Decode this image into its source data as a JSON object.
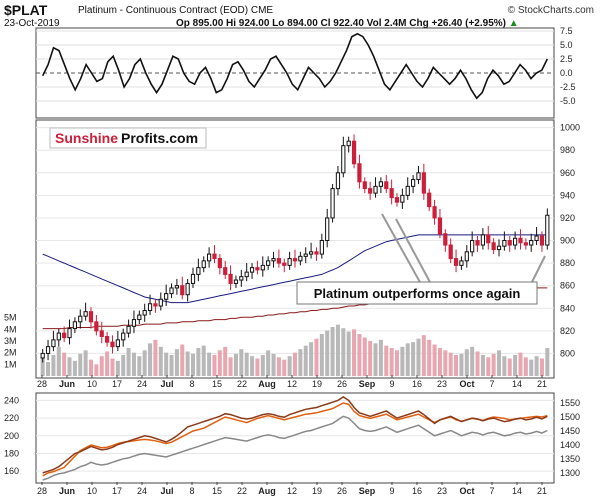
{
  "header": {
    "symbol": "$PLAT",
    "description": "Platinum - Continuous Contract (EOD)",
    "exchange": "CME",
    "date": "23-Oct-2019",
    "quote": "Op 895.00  Hi 924.00  Lo 894.00  Cl 922.40  Vol 2.4M  Chg +26.40 (+2.95%)",
    "quote_arrow": "▲",
    "copyright": "© StockCharts.com"
  },
  "watermark": {
    "part1": "Sunshine",
    "part2": "Profits.com"
  },
  "annotation": "Platinum outperforms once again",
  "colors": {
    "up": "#111111",
    "down": "#cc1f3a",
    "ma_short": "#1a1a80",
    "ma_long": "#8b1a1a",
    "vol_up": "#b8b8b8",
    "vol_down": "#e8a7b0",
    "gold": "#e06010",
    "silver": "#888888",
    "platinum_line": "#8b3a1a"
  },
  "chart_data": [
    {
      "type": "line",
      "panel": "oscillator",
      "ylim": [
        -7.5,
        7.5
      ],
      "yticks": [
        7.5,
        5.0,
        2.5,
        0.0,
        -2.5,
        -5.0
      ],
      "ytick_labels": [
        "7.5",
        "5.0",
        "2.5",
        "0.0",
        "-2.5",
        "-5.0"
      ],
      "values": [
        -0.5,
        1.5,
        4.5,
        4,
        1.5,
        -1,
        -3,
        -1,
        1.5,
        0,
        -1.5,
        -1,
        2,
        3,
        0.5,
        -2.5,
        -1,
        1.5,
        2.5,
        0,
        -2,
        -3.5,
        -2,
        0.5,
        3,
        2.5,
        0,
        -1.5,
        -2,
        0,
        1,
        -1,
        -3.5,
        -3,
        -1,
        1.5,
        2,
        0.5,
        -1.5,
        -2.5,
        -1,
        0.5,
        2.5,
        3,
        1.5,
        0,
        -2,
        -3,
        -1,
        1,
        0,
        -1,
        -2.5,
        -1.5,
        0,
        2,
        4,
        6.5,
        7,
        6.5,
        5,
        3,
        0.5,
        -2,
        -3,
        -1.5,
        0,
        1.5,
        0,
        -1.5,
        -2.5,
        -1,
        1,
        0,
        -1,
        -2,
        -1,
        0.5,
        -1,
        -3,
        -4.5,
        -3.5,
        -1,
        0.5,
        -0.5,
        -2,
        -1.5,
        0,
        1.5,
        0.5,
        -1,
        0,
        0.5,
        2.5
      ]
    },
    {
      "type": "candlestick",
      "panel": "price",
      "ylim": [
        780,
        1005
      ],
      "yticks": [
        1000,
        980,
        960,
        940,
        920,
        900,
        880,
        860,
        840,
        820,
        800
      ],
      "ytick_labels": [
        "1000",
        "980",
        "960",
        "940",
        "920",
        "900",
        "880",
        "860",
        "840",
        "820",
        "800"
      ],
      "volume_ylim": [
        0,
        6
      ],
      "volume_ticks": [
        5,
        4,
        3,
        2,
        1
      ],
      "volume_tick_labels": [
        "5M",
        "4M",
        "3M",
        "2M",
        "1M"
      ],
      "closes": [
        800,
        806,
        812,
        818,
        814,
        822,
        828,
        833,
        837,
        828,
        820,
        815,
        810,
        806,
        812,
        818,
        824,
        830,
        834,
        838,
        844,
        842,
        848,
        853,
        858,
        860,
        852,
        862,
        870,
        876,
        882,
        888,
        884,
        876,
        870,
        862,
        865,
        868,
        872,
        876,
        874,
        878,
        882,
        884,
        880,
        878,
        884,
        882,
        886,
        888,
        890,
        888,
        900,
        920,
        946,
        960,
        984,
        988,
        968,
        952,
        946,
        942,
        948,
        952,
        946,
        938,
        934,
        940,
        948,
        954,
        960,
        942,
        930,
        920,
        906,
        896,
        884,
        878,
        882,
        890,
        900,
        896,
        905,
        898,
        892,
        895,
        900,
        896,
        902,
        898,
        896,
        900,
        904,
        896,
        922.4
      ],
      "ma50": [
        888,
        886,
        884,
        882,
        880,
        878,
        876,
        874,
        872,
        870,
        868,
        866,
        864,
        862,
        860,
        858,
        856,
        854,
        852,
        850,
        849,
        848,
        847,
        846,
        845,
        845,
        845,
        845,
        846,
        847,
        848,
        849,
        850,
        851,
        852,
        853,
        854,
        855,
        856,
        857,
        858,
        859,
        860,
        861,
        862,
        863,
        864,
        865,
        866,
        867,
        868,
        869,
        870,
        872,
        874,
        876,
        879,
        882,
        885,
        888,
        891,
        893,
        895,
        897,
        899,
        900,
        901,
        902,
        903,
        904,
        905,
        905,
        905,
        905,
        905,
        905,
        905,
        905,
        905,
        905,
        905,
        905,
        905,
        905,
        905,
        905,
        905,
        905,
        905,
        905,
        905,
        905,
        905,
        905,
        905
      ],
      "ma200": [
        822,
        822,
        822,
        822,
        822,
        823,
        823,
        823,
        823,
        823,
        824,
        824,
        824,
        824,
        824,
        825,
        825,
        825,
        825,
        826,
        826,
        826,
        826,
        827,
        827,
        827,
        828,
        828,
        828,
        829,
        829,
        829,
        830,
        830,
        830,
        831,
        831,
        832,
        832,
        832,
        833,
        833,
        834,
        834,
        835,
        835,
        836,
        836,
        837,
        837,
        838,
        838,
        839,
        839,
        840,
        840,
        841,
        842,
        842,
        843,
        843,
        844,
        845,
        845,
        846,
        846,
        847,
        848,
        848,
        849,
        849,
        850,
        850,
        851,
        851,
        852,
        852,
        853,
        853,
        853,
        854,
        854,
        854,
        855,
        855,
        855,
        856,
        856,
        856,
        857,
        857,
        857,
        858,
        858,
        858
      ],
      "volume": [
        1.5,
        1.2,
        1.8,
        2.5,
        2.0,
        1.6,
        1.3,
        1.9,
        2.2,
        1.4,
        1.0,
        1.7,
        2.1,
        1.5,
        1.3,
        1.8,
        2.4,
        2.0,
        1.7,
        2.2,
        2.8,
        3.1,
        2.5,
        2.0,
        1.8,
        2.3,
        2.7,
        2.1,
        1.9,
        2.4,
        2.6,
        2.0,
        1.8,
        2.2,
        2.5,
        1.6,
        1.9,
        2.3,
        2.0,
        1.7,
        1.5,
        1.8,
        2.2,
        1.9,
        1.6,
        1.4,
        1.7,
        2.0,
        2.3,
        2.6,
        2.9,
        3.2,
        3.6,
        3.9,
        4.2,
        4.4,
        4.1,
        3.8,
        4.0,
        3.6,
        3.3,
        3.0,
        2.8,
        3.1,
        2.6,
        2.4,
        2.2,
        2.5,
        2.8,
        2.9,
        3.2,
        3.5,
        3.1,
        2.7,
        2.4,
        2.2,
        2.0,
        1.8,
        1.9,
        2.3,
        2.5,
        2.1,
        1.8,
        1.6,
        1.9,
        2.2,
        1.7,
        1.5,
        1.8,
        2.0,
        1.6,
        1.4,
        1.7,
        1.5,
        2.4
      ]
    },
    {
      "type": "line",
      "panel": "comparison",
      "left_ylim": [
        150,
        245
      ],
      "left_yticks": [
        240,
        220,
        200,
        180,
        160
      ],
      "left_ytick_labels": [
        "240",
        "220",
        "200",
        "180",
        "160"
      ],
      "right_ylim": [
        1275,
        1575
      ],
      "right_yticks": [
        1550,
        1500,
        1450,
        1400,
        1350,
        1300
      ],
      "right_ytick_labels": [
        "1550",
        "1500",
        "1450",
        "1400",
        "1350",
        "1300"
      ],
      "series": [
        {
          "values": [
            1290,
            1300,
            1305,
            1312,
            1320,
            1340,
            1360,
            1380,
            1390,
            1400,
            1395,
            1390,
            1392,
            1398,
            1405,
            1410,
            1412,
            1415,
            1418,
            1420,
            1418,
            1415,
            1410,
            1405,
            1410,
            1420,
            1430,
            1440,
            1450,
            1455,
            1460,
            1470,
            1480,
            1490,
            1500,
            1495,
            1490,
            1485,
            1480,
            1488,
            1495,
            1500,
            1505,
            1500,
            1495,
            1490,
            1495,
            1500,
            1505,
            1510,
            1512,
            1515,
            1520,
            1525,
            1530,
            1540,
            1550,
            1545,
            1520,
            1505,
            1500,
            1495,
            1500,
            1505,
            1510,
            1500,
            1490,
            1495,
            1500,
            1505,
            1510,
            1500,
            1490,
            1480,
            1490,
            1495,
            1500,
            1490,
            1485,
            1490,
            1495,
            1492,
            1488,
            1495,
            1500,
            1498,
            1495,
            1490,
            1492,
            1495,
            1498,
            1500,
            1502,
            1500,
            1505
          ]
        },
        {
          "values": [
            158,
            160,
            162,
            165,
            170,
            175,
            180,
            182,
            185,
            188,
            186,
            184,
            185,
            187,
            190,
            192,
            194,
            196,
            198,
            200,
            199,
            197,
            195,
            193,
            196,
            200,
            205,
            210,
            212,
            214,
            216,
            218,
            220,
            222,
            225,
            224,
            222,
            220,
            219,
            220,
            222,
            224,
            225,
            224,
            222,
            221,
            224,
            226,
            228,
            230,
            231,
            232,
            234,
            236,
            238,
            240,
            244,
            240,
            232,
            226,
            224,
            222,
            224,
            226,
            228,
            224,
            220,
            222,
            224,
            226,
            228,
            224,
            219,
            214,
            218,
            220,
            222,
            219,
            216,
            218,
            220,
            219,
            217,
            219,
            220,
            218,
            216,
            217,
            219,
            220,
            218,
            219,
            221,
            219,
            222
          ]
        },
        {
          "values": [
            150,
            152,
            155,
            157,
            158,
            160,
            162,
            165,
            167,
            170,
            168,
            167,
            168,
            170,
            172,
            174,
            175,
            177,
            179,
            180,
            179,
            178,
            177,
            176,
            178,
            180,
            182,
            184,
            186,
            188,
            190,
            192,
            194,
            196,
            198,
            197,
            196,
            195,
            194,
            196,
            198,
            200,
            201,
            200,
            198,
            197,
            199,
            201,
            203,
            205,
            206,
            208,
            210,
            212,
            214,
            218,
            222,
            220,
            214,
            208,
            206,
            205,
            206,
            208,
            210,
            207,
            204,
            206,
            208,
            210,
            212,
            208,
            204,
            200,
            202,
            204,
            206,
            203,
            200,
            202,
            204,
            203,
            201,
            203,
            204,
            202,
            200,
            201,
            203,
            204,
            202,
            203,
            205,
            203,
            206
          ]
        }
      ]
    }
  ],
  "xaxis": {
    "labels": [
      "28",
      "Jun",
      "10",
      "17",
      "24",
      "Jul",
      "8",
      "15",
      "22",
      "Aug",
      "12",
      "19",
      "26",
      "Sep",
      "9",
      "16",
      "23",
      "Oct",
      "7",
      "14",
      "21"
    ],
    "bold": [
      "Jun",
      "Jul",
      "Aug",
      "Sep",
      "Oct"
    ]
  }
}
